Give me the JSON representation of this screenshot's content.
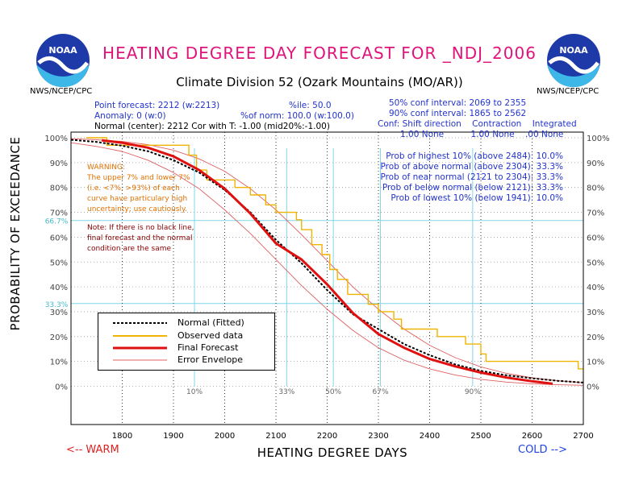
{
  "header": {
    "title": "HEATING DEGREE DAY FORECAST FOR _NDJ_2006",
    "subtitle": "Climate Division 52 (Ozark Mountains (MO/AR))",
    "logo_left_text": "NOAA",
    "logo_right_text": "NOAA",
    "org_left": "NWS/NCEP/CPC",
    "org_right": "NWS/NCEP/CPC"
  },
  "info_left": {
    "line1": "Point forecast: 2212 (w:2213)",
    "line1b": "%ile: 50.0",
    "line2": "Anomaly: 0 (w:0)",
    "line2b": "%of norm: 100.0 (w:100.0)",
    "line3": "Normal (center): 2212 Cor with T: -1.00 (mid20%:-1.00)"
  },
  "info_right": {
    "conf50": "50% conf interval: 2069 to 2355",
    "conf90": "90% conf interval: 1865 to 2562",
    "conf_header": "Conf: Shift direction    Contraction    Integrated",
    "conf_values": "1.00 None          1.00 None    .00 None"
  },
  "probs": [
    "Prob of highest 10% (above 2484): 10.0%",
    "Prob of above normal (above 2304): 33.3%",
    "Prob of near normal (2121 to 2304): 33.3%",
    "Prob of below normal (below 2121): 33.3%",
    "Prob of lowest 10% (below 1941): 10.0%"
  ],
  "warning": [
    "WARNING:",
    "The upper 7% and lower 7%",
    "(i.e. <7%, >93%) of each",
    "curve have particulary high",
    "uncertainty; use cautiously."
  ],
  "note": [
    "Note: If there is no black line,",
    "final forecast and  the normal",
    "condition are the same"
  ],
  "legend": {
    "normal": "Normal (Fitted)",
    "observed": "Observed data",
    "final": "Final Forecast",
    "envelope": "Error Envelope"
  },
  "axis": {
    "ylabel": "PROBABILITY OF EXCEEDANCE",
    "xlabel": "HEATING DEGREE DAYS",
    "warm": "<-- WARM",
    "cold": "COLD -->"
  },
  "colors": {
    "title": "#e0137a",
    "normal": "#000000",
    "observed": "#f0b400",
    "final": "#e01010",
    "envelope": "#e06060",
    "percentile_lines": "#7fd6e6",
    "info_blue": "#2233cc"
  },
  "chart_data": {
    "type": "line",
    "xlim": [
      1700,
      2700
    ],
    "ylim": [
      0,
      100
    ],
    "x_ticks": [
      1800,
      1900,
      2000,
      2100,
      2200,
      2300,
      2400,
      2500,
      2600,
      2700
    ],
    "y_ticks": [
      0,
      10,
      20,
      30,
      40,
      50,
      60,
      70,
      80,
      90,
      100
    ],
    "y_tick_labels": [
      "0%",
      "10%",
      "20%",
      "30%",
      "40%",
      "50%",
      "60%",
      "70%",
      "80%",
      "90%",
      "100%"
    ],
    "extra_y_marks": [
      {
        "value": 66.7,
        "label": "66.7%"
      },
      {
        "value": 33.3,
        "label": "33.3%"
      }
    ],
    "percentile_marks": [
      {
        "label": "10%",
        "x": 1941
      },
      {
        "label": "33%",
        "x": 2121
      },
      {
        "label": "50%",
        "x": 2212
      },
      {
        "label": "67%",
        "x": 2304
      },
      {
        "label": "90%",
        "x": 2484
      }
    ],
    "grid": true,
    "series": [
      {
        "name": "Normal (Fitted)",
        "x": [
          1700,
          1750,
          1800,
          1850,
          1900,
          1950,
          2000,
          2050,
          2100,
          2150,
          2200,
          2250,
          2300,
          2350,
          2400,
          2450,
          2500,
          2550,
          2600,
          2650,
          2700
        ],
        "y": [
          99.2,
          98.3,
          96.8,
          94.6,
          91.0,
          86.0,
          79.0,
          70.0,
          58.9,
          49.5,
          38.7,
          29.0,
          23.0,
          17.0,
          12.5,
          8.8,
          6.2,
          4.4,
          3.2,
          2.2,
          1.5
        ]
      },
      {
        "name": "Final Forecast",
        "x": [
          1760,
          1800,
          1850,
          1900,
          1950,
          2000,
          2050,
          2100,
          2150,
          2200,
          2250,
          2300,
          2350,
          2400,
          2450,
          2500,
          2550,
          2600,
          2640
        ],
        "y": [
          99.0,
          98.0,
          96.0,
          92.5,
          87.0,
          79.5,
          69.5,
          57.5,
          51.0,
          41.0,
          29.5,
          21.0,
          15.5,
          11.0,
          8.0,
          5.5,
          3.5,
          2.0,
          1.0
        ]
      },
      {
        "name": "Observed data",
        "x": [
          1730,
          1770,
          1770,
          1930,
          1930,
          1945,
          1945,
          1965,
          1965,
          2020,
          2020,
          2050,
          2050,
          2080,
          2080,
          2100,
          2100,
          2140,
          2140,
          2150,
          2150,
          2170,
          2170,
          2190,
          2190,
          2205,
          2205,
          2220,
          2220,
          2240,
          2240,
          2280,
          2280,
          2300,
          2300,
          2330,
          2330,
          2345,
          2345,
          2415,
          2415,
          2470,
          2470,
          2500,
          2500,
          2510,
          2510,
          2690,
          2690,
          2700
        ],
        "y": [
          100,
          100,
          97,
          97,
          93,
          93,
          87,
          87,
          83,
          83,
          80,
          80,
          77,
          77,
          73,
          73,
          70,
          70,
          67,
          67,
          63,
          63,
          57,
          57,
          53,
          53,
          47,
          47,
          43,
          43,
          37,
          37,
          33,
          33,
          30,
          30,
          27,
          27,
          23,
          23,
          20,
          20,
          17,
          17,
          13,
          13,
          10,
          10,
          7,
          7
        ]
      },
      {
        "name": "Error Envelope",
        "x": [
          1700,
          1750,
          1800,
          1850,
          1900,
          1950,
          2000,
          2050,
          2100,
          2150,
          2200,
          2250,
          2300,
          2350,
          2400,
          2450,
          2500,
          2550,
          2600,
          2650,
          2700
        ],
        "y": [
          99.6,
          99.2,
          98.5,
          97.2,
          95.0,
          91.5,
          86.5,
          79.5,
          71.0,
          61.0,
          50.5,
          40.0,
          31.0,
          23.0,
          16.5,
          11.5,
          7.8,
          5.2,
          3.4,
          2.2,
          1.4
        ]
      },
      {
        "name": "Error Envelope",
        "x": [
          1700,
          1750,
          1800,
          1850,
          1900,
          1950,
          2000,
          2050,
          2100,
          2150,
          2200,
          2250,
          2300,
          2350,
          2400,
          2450,
          2500,
          2550,
          2600,
          2650,
          2700
        ],
        "y": [
          98.0,
          96.5,
          94.5,
          91.0,
          86.0,
          79.5,
          71.0,
          61.5,
          51.0,
          40.5,
          31.0,
          22.5,
          15.5,
          10.5,
          7.0,
          4.5,
          2.8,
          1.7,
          1.0,
          0.6,
          0.4
        ]
      }
    ]
  }
}
